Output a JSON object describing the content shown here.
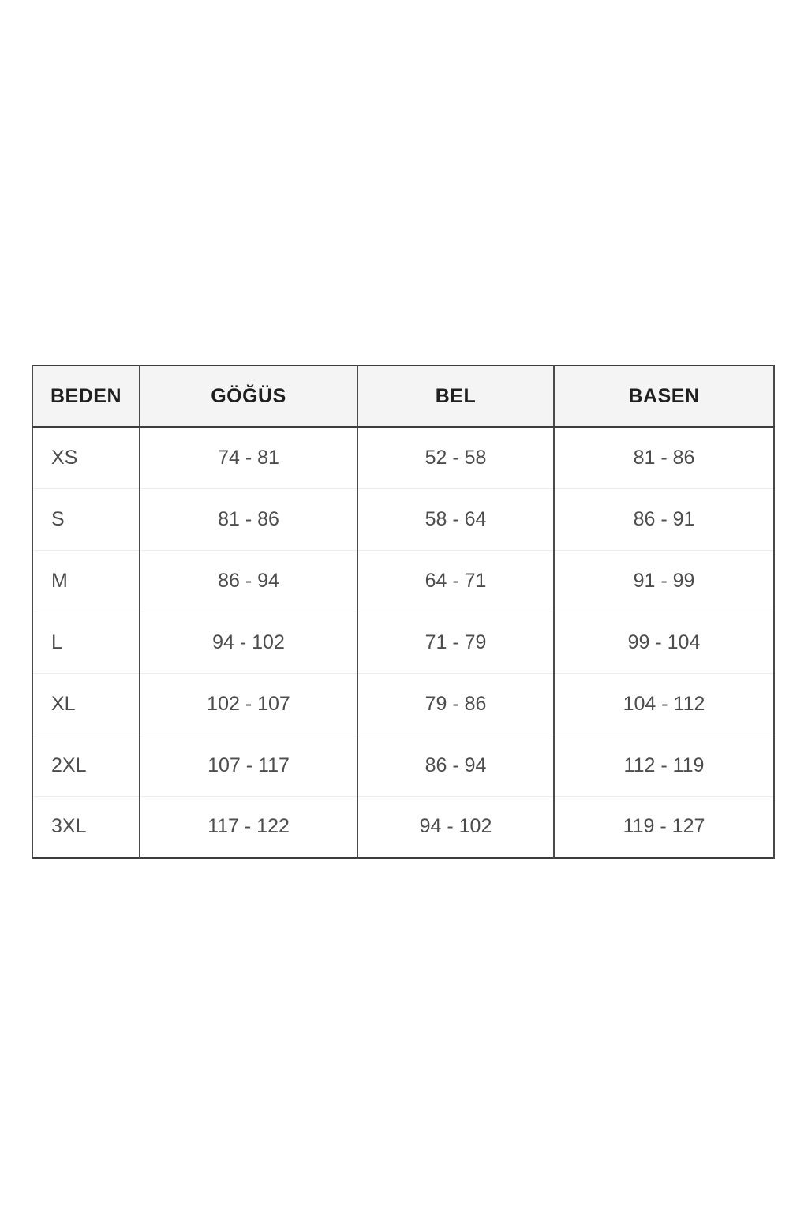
{
  "chart_data": {
    "type": "table",
    "title": "",
    "columns": [
      "BEDEN",
      "GÖĞÜS",
      "BEL",
      "BASEN"
    ],
    "rows": [
      [
        "XS",
        "74 - 81",
        "52 - 58",
        "81 - 86"
      ],
      [
        "S",
        "81 - 86",
        "58 - 64",
        "86 - 91"
      ],
      [
        "M",
        "86 - 94",
        "64 - 71",
        "91 - 99"
      ],
      [
        "L",
        "94 - 102",
        "71 - 79",
        "99 - 104"
      ],
      [
        "XL",
        "102 - 107",
        "79 - 86",
        "104 - 112"
      ],
      [
        "2XL",
        "107 - 117",
        "86 - 94",
        "112 - 119"
      ],
      [
        "3XL",
        "117 - 122",
        "94 - 102",
        "119 - 127"
      ]
    ],
    "layout": {
      "grid": "on",
      "header_row": true,
      "first_column_alignment": "left",
      "data_alignment": "center"
    }
  },
  "colors": {
    "outer_border": "#3c3c3c",
    "column_border": "#4a4a4a",
    "row_divider": "#ececec",
    "header_background": "#f4f4f4",
    "header_text": "#1f1f1f",
    "cell_text": "#4d4d4d",
    "page_background": "#ffffff"
  }
}
